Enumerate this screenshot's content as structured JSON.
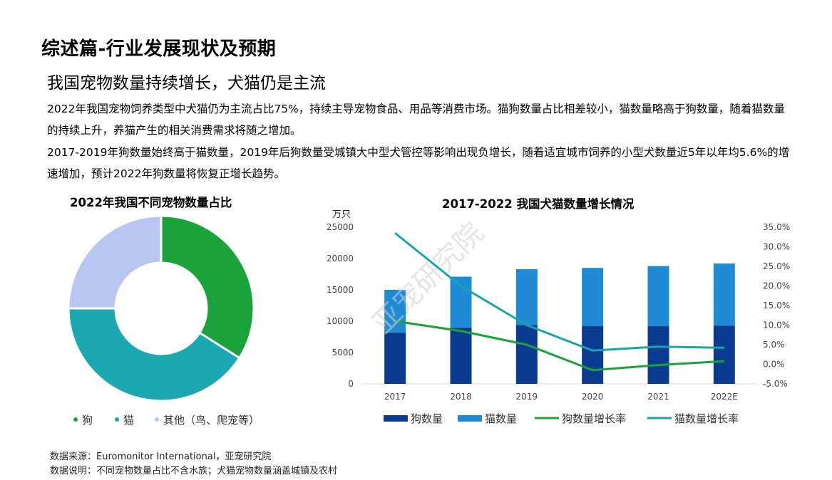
{
  "header": {
    "section_title": "综述篇-行业发展现状及预期",
    "subtitle": "我国宠物数量持续增长，犬猫仍是主流",
    "para1": "2022年我国宠物饲养类型中犬猫仍为主流占比75%，持续主导宠物食品、用品等消费市场。猫狗数量占比相差较小，猫数量略高于狗数量，随着猫数量的持续上升，养猫产生的相关消费需求将随之增加。",
    "para2": "2017-2019年狗数量始终高于猫数量，2019年后狗数量受城镇大中型犬管控等影响出现负增长，随着适宜城市饲养的小型犬数量近5年以年均5.6%的增速增加，预计2022年狗数量将恢复正增长趋势。"
  },
  "watermark": "亚宠研究院",
  "footnotes": {
    "source": "数据来源：Euromonitor International，亚宠研究院",
    "note": "数据说明：不同宠物数量占比不含水族；犬猫宠物数量涵盖城镇及农村"
  },
  "chart_data": [
    {
      "type": "pie",
      "variant": "donut",
      "title": "2022年我国不同宠物数量占比",
      "categories": [
        "狗",
        "猫",
        "其他（鸟、爬宠等）"
      ],
      "values": [
        34,
        41,
        25
      ],
      "colors": [
        "#1aa33a",
        "#1ca8b0",
        "#b9c6f2"
      ],
      "legend_position": "bottom"
    },
    {
      "type": "bar",
      "subtype": "stacked-bar-with-lines",
      "title": "2017-2022  我国犬猫数量增长情况",
      "y_unit": "万只",
      "categories": [
        "2017",
        "2018",
        "2019",
        "2020",
        "2021",
        "2022E"
      ],
      "ylim": [
        0,
        25000
      ],
      "yticks": [
        "0",
        "5000",
        "10000",
        "15000",
        "20000",
        "25000"
      ],
      "y2lim": [
        -5,
        35
      ],
      "y2ticks": [
        "-5.0%",
        "0.0%",
        "5.0%",
        "10.0%",
        "15.0%",
        "20.0%",
        "25.0%",
        "30.0%",
        "35.0%"
      ],
      "bar_series": [
        {
          "name": "狗数量",
          "values": [
            8200,
            9000,
            9400,
            9200,
            9200,
            9300
          ],
          "color": "#0b3a91"
        },
        {
          "name": "猫数量",
          "values": [
            6800,
            8100,
            8900,
            9300,
            9600,
            9900
          ],
          "color": "#1f8bd6"
        }
      ],
      "line_series": [
        {
          "name": "狗数量增长率",
          "values": [
            11.0,
            8.5,
            5.0,
            -1.5,
            -0.2,
            0.8
          ],
          "color": "#1aa33a"
        },
        {
          "name": "猫数量增长率",
          "values": [
            33.5,
            20.0,
            10.0,
            3.5,
            4.5,
            4.2
          ],
          "color": "#19a4ad"
        }
      ],
      "grid": false,
      "legend_position": "bottom"
    }
  ]
}
